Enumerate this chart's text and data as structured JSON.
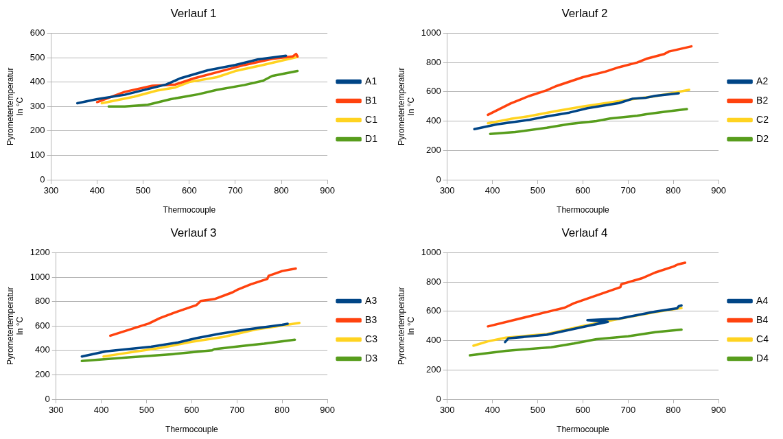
{
  "chart_data": [
    {
      "type": "line",
      "title": "Verlauf 1",
      "xlabel": "Thermocouple",
      "ylabel": "Pyrometertemperatur\nIn °C",
      "xlim": [
        300,
        900
      ],
      "xticks": [
        300,
        400,
        500,
        600,
        700,
        800,
        900
      ],
      "ylim": [
        0,
        600
      ],
      "yticks": [
        0,
        100,
        200,
        300,
        400,
        500,
        600
      ],
      "grid": "y",
      "legend": "right",
      "marker": "none",
      "line_style": "solid",
      "series": [
        {
          "name": "A1",
          "color": "#004586",
          "x": [
            357,
            400,
            460,
            550,
            580,
            640,
            700,
            750,
            810
          ],
          "values": [
            313,
            330,
            348,
            390,
            415,
            448,
            470,
            493,
            508
          ]
        },
        {
          "name": "B1",
          "color": "#ff420e",
          "x": [
            400,
            460,
            520,
            570,
            610,
            660,
            720,
            780,
            825,
            832,
            835
          ],
          "values": [
            318,
            360,
            385,
            390,
            415,
            440,
            470,
            495,
            505,
            515,
            505
          ]
        },
        {
          "name": "C1",
          "color": "#ffd320",
          "x": [
            410,
            480,
            530,
            570,
            600,
            660,
            700,
            760,
            835
          ],
          "values": [
            313,
            340,
            365,
            378,
            400,
            420,
            445,
            470,
            503
          ]
        },
        {
          "name": "D1",
          "color": "#579d1c",
          "x": [
            425,
            460,
            510,
            560,
            620,
            660,
            720,
            760,
            780,
            835
          ],
          "values": [
            300,
            300,
            307,
            330,
            350,
            368,
            388,
            405,
            425,
            445
          ]
        }
      ]
    },
    {
      "type": "line",
      "title": "Verlauf 2",
      "xlabel": "Thermocouple",
      "ylabel": "Pyrometertemperatur\nIn °C",
      "xlim": [
        300,
        900
      ],
      "xticks": [
        300,
        400,
        500,
        600,
        700,
        800,
        900
      ],
      "ylim": [
        0,
        1000
      ],
      "yticks": [
        0,
        200,
        400,
        600,
        800,
        1000
      ],
      "grid": "y",
      "legend": "right",
      "marker": "none",
      "line_style": "solid",
      "series": [
        {
          "name": "A2",
          "color": "#004586",
          "x": [
            360,
            410,
            480,
            520,
            570,
            610,
            680,
            710,
            740,
            760,
            812
          ],
          "values": [
            345,
            378,
            408,
            432,
            458,
            488,
            523,
            553,
            560,
            572,
            590
          ]
        },
        {
          "name": "B2",
          "color": "#ff420e",
          "x": [
            390,
            440,
            480,
            520,
            540,
            600,
            650,
            680,
            720,
            740,
            780,
            790,
            840
          ],
          "values": [
            443,
            520,
            570,
            610,
            638,
            700,
            738,
            768,
            800,
            825,
            858,
            875,
            910
          ]
        },
        {
          "name": "C2",
          "color": "#ffd320",
          "x": [
            390,
            440,
            480,
            540,
            600,
            700,
            760,
            835
          ],
          "values": [
            385,
            415,
            433,
            468,
            500,
            545,
            570,
            613
          ]
        },
        {
          "name": "D2",
          "color": "#579d1c",
          "x": [
            395,
            450,
            520,
            570,
            630,
            660,
            720,
            740,
            780,
            830
          ],
          "values": [
            313,
            325,
            355,
            380,
            400,
            418,
            437,
            447,
            463,
            482
          ]
        }
      ]
    },
    {
      "type": "line",
      "title": "Verlauf 3",
      "xlabel": "Thermocouple",
      "ylabel": "Pyrometertemperatur\nIn °C",
      "xlim": [
        300,
        900
      ],
      "xticks": [
        300,
        400,
        500,
        600,
        700,
        800,
        900
      ],
      "ylim": [
        0,
        1200
      ],
      "yticks": [
        0,
        200,
        400,
        600,
        800,
        1000,
        1200
      ],
      "grid": "y",
      "legend": "right",
      "marker": "none",
      "line_style": "solid",
      "series": [
        {
          "name": "A3",
          "color": "#004586",
          "x": [
            357,
            410,
            510,
            570,
            610,
            660,
            720,
            800,
            812
          ],
          "values": [
            350,
            392,
            430,
            465,
            500,
            535,
            570,
            610,
            618
          ]
        },
        {
          "name": "B3",
          "color": "#ff420e",
          "x": [
            420,
            505,
            530,
            570,
            610,
            620,
            650,
            690,
            700,
            730,
            767,
            770,
            800,
            830
          ],
          "values": [
            520,
            620,
            665,
            720,
            770,
            805,
            820,
            875,
            895,
            940,
            985,
            1010,
            1050,
            1070
          ]
        },
        {
          "name": "C3",
          "color": "#ffd320",
          "x": [
            405,
            440,
            530,
            600,
            670,
            740,
            810,
            838
          ],
          "values": [
            350,
            370,
            420,
            470,
            510,
            570,
            610,
            625
          ]
        },
        {
          "name": "D3",
          "color": "#579d1c",
          "x": [
            357,
            450,
            560,
            645,
            650,
            720,
            760,
            828
          ],
          "values": [
            313,
            340,
            370,
            400,
            410,
            440,
            455,
            487
          ]
        }
      ]
    },
    {
      "type": "line",
      "title": "Verlauf 4",
      "xlabel": "Thermocouple",
      "ylabel": "Pyrometertemperatur\nIn °C",
      "xlim": [
        300,
        900
      ],
      "xticks": [
        300,
        400,
        500,
        600,
        700,
        800,
        900
      ],
      "ylim": [
        0,
        1000
      ],
      "yticks": [
        0,
        200,
        400,
        600,
        800,
        1000
      ],
      "grid": "y",
      "legend": "right",
      "marker": "none",
      "line_style": "solid",
      "series": [
        {
          "name": "A4",
          "color": "#004586",
          "x": [
            428,
            435,
            520,
            610,
            655,
            610,
            680,
            760,
            808,
            812,
            818
          ],
          "values": [
            390,
            415,
            440,
            500,
            528,
            540,
            550,
            598,
            620,
            635,
            640
          ]
        },
        {
          "name": "B4",
          "color": "#ff420e",
          "x": [
            390,
            520,
            560,
            580,
            683,
            685,
            730,
            760,
            800,
            810,
            826
          ],
          "values": [
            497,
            595,
            625,
            655,
            765,
            785,
            825,
            865,
            905,
            920,
            932
          ]
        },
        {
          "name": "C4",
          "color": "#ffd320",
          "x": [
            358,
            390,
            430,
            520,
            600,
            650,
            700,
            760,
            818
          ],
          "values": [
            365,
            395,
            420,
            445,
            500,
            530,
            560,
            595,
            622
          ]
        },
        {
          "name": "D4",
          "color": "#579d1c",
          "x": [
            350,
            430,
            530,
            580,
            630,
            700,
            760,
            818
          ],
          "values": [
            300,
            330,
            355,
            380,
            410,
            430,
            458,
            475
          ]
        }
      ]
    }
  ]
}
